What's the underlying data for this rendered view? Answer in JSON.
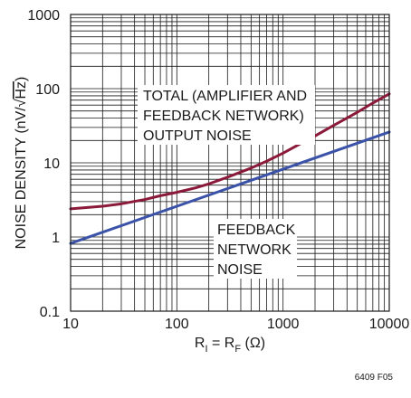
{
  "chart_data": {
    "type": "line",
    "title": "",
    "xlabel": "R = R (Ω)",
    "xlabel_parts": {
      "r1": "R",
      "sub1": "I",
      "mid": " = R",
      "sub2": "F",
      "unit": " (Ω)"
    },
    "ylabel": "NOISE DENSITY (nV/√Hz)",
    "ylabel_parts": {
      "prefix": "NOISE DENSITY (nV/",
      "radical": "√",
      "radicand": "Hz",
      "suffix": ")"
    },
    "x_scale": "log",
    "y_scale": "log",
    "xlim": [
      10,
      10000
    ],
    "ylim": [
      0.1,
      1000
    ],
    "grid": true,
    "xticks": [
      10,
      100,
      1000,
      10000
    ],
    "xtick_labels": [
      "10",
      "100",
      "1000",
      "10000"
    ],
    "yticks": [
      0.1,
      1,
      10,
      100,
      1000
    ],
    "ytick_labels": [
      "0.1",
      "1",
      "10",
      "100",
      "1000"
    ],
    "series": [
      {
        "id": "total",
        "color": "#8b1a3a",
        "x": [
          10,
          20,
          30,
          50,
          70,
          100,
          150,
          200,
          300,
          500,
          700,
          1000,
          1500,
          2000,
          3000,
          5000,
          7000,
          10000
        ],
        "y": [
          2.4,
          2.6,
          2.8,
          3.2,
          3.6,
          4.0,
          4.6,
          5.2,
          6.4,
          8.5,
          10.5,
          13.5,
          18.5,
          23,
          32,
          48,
          64,
          85
        ]
      },
      {
        "id": "feedback",
        "color": "#3a52a8",
        "x": [
          10,
          10000
        ],
        "y": [
          0.82,
          26
        ]
      }
    ],
    "annotations": [
      {
        "id": "total-annotation",
        "lines": [
          "TOTAL (AMPLIFIER AND",
          "FEEDBACK NETWORK)",
          "OUTPUT NOISE"
        ]
      },
      {
        "id": "feedback-annotation",
        "lines": [
          "FEEDBACK",
          "NETWORK",
          "NOISE"
        ]
      }
    ],
    "figure_id": "6409 F05"
  }
}
